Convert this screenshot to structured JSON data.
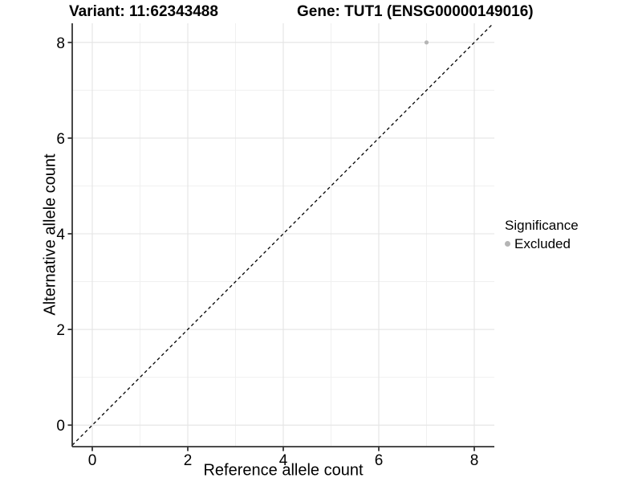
{
  "chart_data": {
    "type": "scatter",
    "titles": {
      "left": "Variant: 11:62343488",
      "right": "Gene: TUT1 (ENSG00000149016)"
    },
    "xlabel": "Reference allele count",
    "ylabel": "Alternative allele count",
    "xticks": [
      0,
      2,
      4,
      6,
      8
    ],
    "yticks": [
      0,
      2,
      4,
      6,
      8
    ],
    "xminor": [
      1,
      3,
      5,
      7
    ],
    "yminor": [
      1,
      3,
      5,
      7
    ],
    "xlim": [
      -0.42,
      8.42
    ],
    "ylim": [
      -0.45,
      8.4
    ],
    "grid": {
      "on": true,
      "major_color": "#e4e4e4",
      "minor_color": "#f0f0f0"
    },
    "axis_color": "#333333",
    "tick_label_color": "#000000",
    "reference_line": {
      "kind": "identity y = x",
      "style": "dashed",
      "color": "#000000"
    },
    "series": [
      {
        "name": "Excluded",
        "color": "#b5b5b5",
        "points": [
          {
            "x": 7,
            "y": 8
          }
        ]
      }
    ],
    "legend": {
      "title": "Significance",
      "position": "right",
      "items": [
        {
          "label": "Excluded",
          "color": "#b5b5b5"
        }
      ]
    }
  }
}
